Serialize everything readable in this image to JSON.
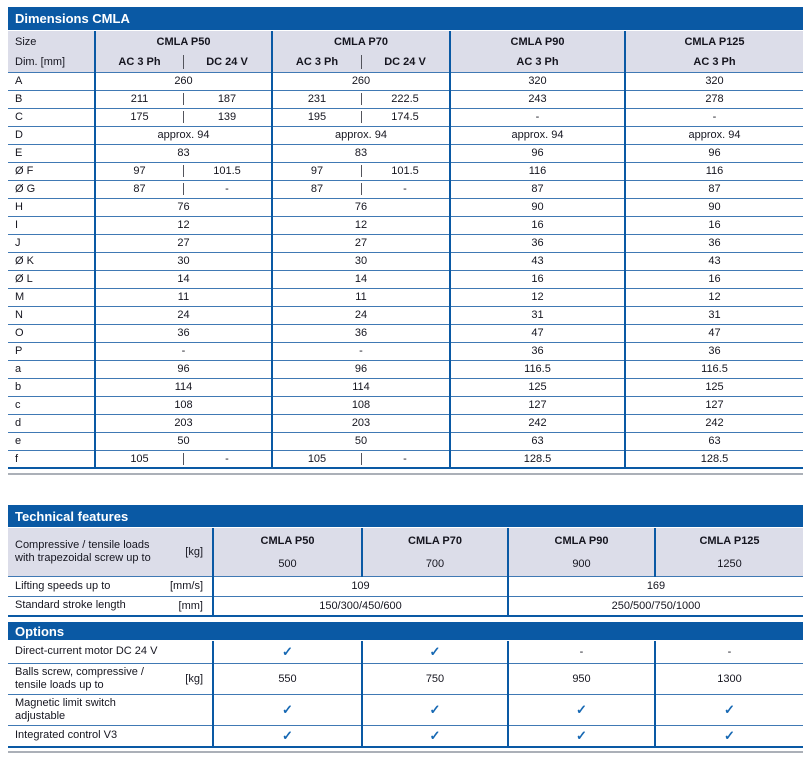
{
  "colors": {
    "header_blue": "#0a59a4",
    "header_lavender": "#dcdde9",
    "row_line_blue": "#4079b4",
    "checkmark_blue": "#1668b3",
    "text": "#15151f",
    "rule_gray": "#abb0b8"
  },
  "dimensions_table": {
    "title": "Dimensions CMLA",
    "size_header": "Size",
    "dim_header": "Dim. [mm]",
    "groups": [
      {
        "label": "CMLA P50",
        "sub": [
          "AC 3 Ph",
          "DC 24 V"
        ]
      },
      {
        "label": "CMLA P70",
        "sub": [
          "AC 3 Ph",
          "DC 24 V"
        ]
      },
      {
        "label": "CMLA P90",
        "sub": [
          "AC 3 Ph"
        ]
      },
      {
        "label": "CMLA P125",
        "sub": [
          "AC 3 Ph"
        ]
      }
    ],
    "rows": [
      {
        "dim": "A",
        "p50": [
          "260"
        ],
        "p70": [
          "260"
        ],
        "p90": "320",
        "p125": "320"
      },
      {
        "dim": "B",
        "p50": [
          "211",
          "187"
        ],
        "p70": [
          "231",
          "222.5"
        ],
        "p90": "243",
        "p125": "278"
      },
      {
        "dim": "C",
        "p50": [
          "175",
          "139"
        ],
        "p70": [
          "195",
          "174.5"
        ],
        "p90": "-",
        "p125": "-"
      },
      {
        "dim": "D",
        "p50": [
          "approx. 94"
        ],
        "p70": [
          "approx. 94"
        ],
        "p90": "approx. 94",
        "p125": "approx. 94"
      },
      {
        "dim": "E",
        "p50": [
          "83"
        ],
        "p70": [
          "83"
        ],
        "p90": "96",
        "p125": "96"
      },
      {
        "dim": "Ø F",
        "p50": [
          "97",
          "101.5"
        ],
        "p70": [
          "97",
          "101.5"
        ],
        "p90": "116",
        "p125": "116"
      },
      {
        "dim": "Ø G",
        "p50": [
          "87",
          "-"
        ],
        "p70": [
          "87",
          "-"
        ],
        "p90": "87",
        "p125": "87"
      },
      {
        "dim": "H",
        "p50": [
          "76"
        ],
        "p70": [
          "76"
        ],
        "p90": "90",
        "p125": "90"
      },
      {
        "dim": "I",
        "p50": [
          "12"
        ],
        "p70": [
          "12"
        ],
        "p90": "16",
        "p125": "16"
      },
      {
        "dim": "J",
        "p50": [
          "27"
        ],
        "p70": [
          "27"
        ],
        "p90": "36",
        "p125": "36"
      },
      {
        "dim": "Ø K",
        "p50": [
          "30"
        ],
        "p70": [
          "30"
        ],
        "p90": "43",
        "p125": "43"
      },
      {
        "dim": "Ø L",
        "p50": [
          "14"
        ],
        "p70": [
          "14"
        ],
        "p90": "16",
        "p125": "16"
      },
      {
        "dim": "M",
        "p50": [
          "11"
        ],
        "p70": [
          "11"
        ],
        "p90": "12",
        "p125": "12"
      },
      {
        "dim": "N",
        "p50": [
          "24"
        ],
        "p70": [
          "24"
        ],
        "p90": "31",
        "p125": "31"
      },
      {
        "dim": "O",
        "p50": [
          "36"
        ],
        "p70": [
          "36"
        ],
        "p90": "47",
        "p125": "47"
      },
      {
        "dim": "P",
        "p50": [
          "-"
        ],
        "p70": [
          "-"
        ],
        "p90": "36",
        "p125": "36"
      },
      {
        "dim": "a",
        "p50": [
          "96"
        ],
        "p70": [
          "96"
        ],
        "p90": "116.5",
        "p125": "116.5"
      },
      {
        "dim": "b",
        "p50": [
          "114"
        ],
        "p70": [
          "114"
        ],
        "p90": "125",
        "p125": "125"
      },
      {
        "dim": "c",
        "p50": [
          "108"
        ],
        "p70": [
          "108"
        ],
        "p90": "127",
        "p125": "127"
      },
      {
        "dim": "d",
        "p50": [
          "203"
        ],
        "p70": [
          "203"
        ],
        "p90": "242",
        "p125": "242"
      },
      {
        "dim": "e",
        "p50": [
          "50"
        ],
        "p70": [
          "50"
        ],
        "p90": "63",
        "p125": "63"
      },
      {
        "dim": "f",
        "p50": [
          "105",
          "-"
        ],
        "p70": [
          "105",
          "-"
        ],
        "p90": "128.5",
        "p125": "128.5"
      }
    ]
  },
  "technical_table": {
    "title": "Technical features",
    "columns": [
      "CMLA P50",
      "CMLA P70",
      "CMLA P90",
      "CMLA P125"
    ],
    "rows": [
      {
        "label": "Compressive / tensile loads\nwith trapezoidal screw up to",
        "unit": "[kg]",
        "values": [
          "500",
          "700",
          "900",
          "1250"
        ]
      },
      {
        "label": "Lifting speeds up to",
        "unit": "[mm/s]",
        "values": [
          "109",
          "169"
        ]
      },
      {
        "label": "Standard stroke length",
        "unit": "[mm]",
        "values": [
          "150/300/450/600",
          "250/500/750/1000"
        ]
      }
    ]
  },
  "options_table": {
    "title": "Options",
    "rows": [
      {
        "label": "Direct-current motor DC 24 V",
        "unit": "",
        "values": [
          "✓",
          "✓",
          "-",
          "-"
        ]
      },
      {
        "label": "Balls screw, compressive /\ntensile loads up to",
        "unit": "[kg]",
        "values": [
          "550",
          "750",
          "950",
          "1300"
        ]
      },
      {
        "label": "Magnetic limit switch\nadjustable",
        "unit": "",
        "values": [
          "✓",
          "✓",
          "✓",
          "✓"
        ]
      },
      {
        "label": "Integrated control V3",
        "unit": "",
        "values": [
          "✓",
          "✓",
          "✓",
          "✓"
        ]
      }
    ]
  }
}
